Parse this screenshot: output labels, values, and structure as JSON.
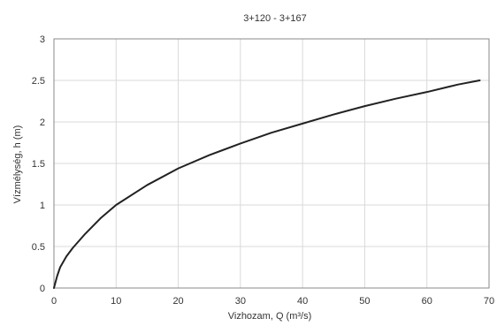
{
  "chart_data": {
    "type": "line",
    "title": "3+120 - 3+167",
    "xlabel": "Vizhozam, Q (m³/s)",
    "ylabel": "Vízmélység, h (m)",
    "xlim": [
      0,
      70
    ],
    "ylim": [
      0,
      3
    ],
    "xticks": [
      0,
      10,
      20,
      30,
      40,
      50,
      60,
      70
    ],
    "yticks": [
      0,
      0.5,
      1,
      1.5,
      2,
      2.5,
      3
    ],
    "ytick_labels": [
      "0",
      "0.5",
      "1",
      "1.5",
      "2",
      "2.5",
      "3"
    ],
    "grid": true,
    "series": [
      {
        "x": [
          0,
          0.5,
          1,
          2,
          3,
          5,
          7.5,
          10,
          15,
          20,
          25,
          30,
          35,
          40,
          45,
          50,
          55,
          60,
          65,
          68.5
        ],
        "y": [
          0,
          0.14,
          0.25,
          0.38,
          0.48,
          0.65,
          0.84,
          1.0,
          1.24,
          1.44,
          1.6,
          1.74,
          1.87,
          1.98,
          2.09,
          2.19,
          2.28,
          2.36,
          2.45,
          2.5
        ]
      }
    ],
    "colors": {
      "line": "#222222",
      "grid": "#d9d9d9",
      "axis": "#888888"
    }
  }
}
